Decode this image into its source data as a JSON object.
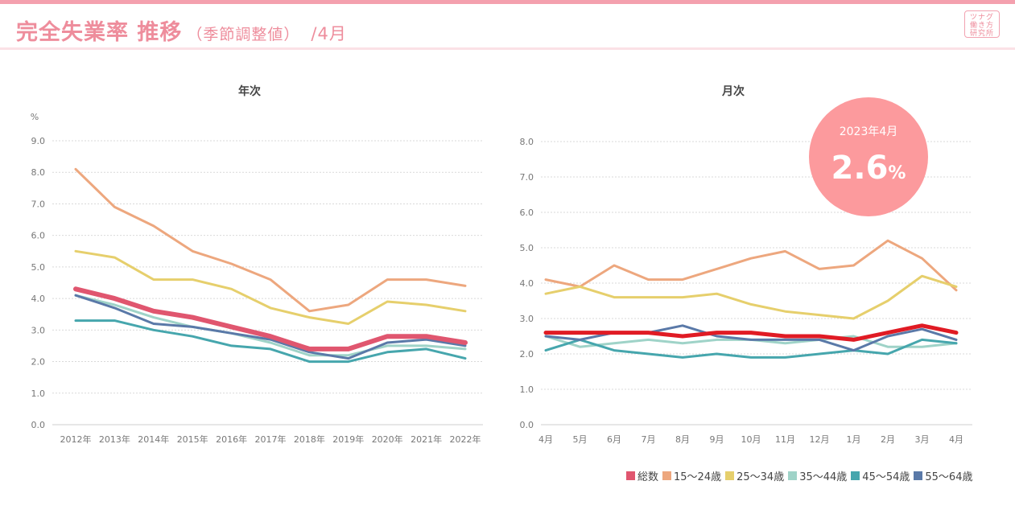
{
  "header": {
    "title": "完全失業率 推移",
    "subtitle": "（季節調整値）",
    "month": "/4月"
  },
  "logo": {
    "lines": [
      "ツナグ",
      "働き方",
      "研究所"
    ]
  },
  "colors": {
    "総数": "#e0566f",
    "15〜24歳": "#eda77e",
    "25〜34歳": "#e6cf6c",
    "35〜44歳": "#9fd3c8",
    "45〜54歳": "#46a6ad",
    "55〜64歳": "#5a79a8",
    "badge": "#fc9a9d",
    "monthly_total": "#e01b24"
  },
  "legend": [
    "総数",
    "15〜24歳",
    "25〜34歳",
    "35〜44歳",
    "45〜54歳",
    "55〜64歳"
  ],
  "badge": {
    "label": "2023年4月",
    "value": "2.6",
    "unit": "%"
  },
  "chart_data": [
    {
      "type": "line",
      "title": "年次",
      "ylabel": "%",
      "ylim": [
        0,
        9
      ],
      "yticks": [
        "0.0",
        "1.0",
        "2.0",
        "3.0",
        "4.0",
        "5.0",
        "6.0",
        "7.0",
        "8.0",
        "9.0"
      ],
      "grid": true,
      "categories": [
        "2012年",
        "2013年",
        "2014年",
        "2015年",
        "2016年",
        "2017年",
        "2018年",
        "2019年",
        "2020年",
        "2021年",
        "2022年"
      ],
      "series": [
        {
          "name": "15〜24歳",
          "values": [
            8.1,
            6.9,
            6.3,
            5.5,
            5.1,
            4.6,
            3.6,
            3.8,
            4.6,
            4.6,
            4.4
          ]
        },
        {
          "name": "25〜34歳",
          "values": [
            5.5,
            5.3,
            4.6,
            4.6,
            4.3,
            3.7,
            3.4,
            3.2,
            3.9,
            3.8,
            3.6
          ]
        },
        {
          "name": "35〜44歳",
          "values": [
            4.1,
            3.8,
            3.4,
            3.1,
            2.9,
            2.6,
            2.2,
            2.2,
            2.5,
            2.5,
            2.4
          ]
        },
        {
          "name": "45〜54歳",
          "values": [
            3.3,
            3.3,
            3.0,
            2.8,
            2.5,
            2.4,
            2.0,
            2.0,
            2.3,
            2.4,
            2.1
          ]
        },
        {
          "name": "55〜64歳",
          "values": [
            4.1,
            3.7,
            3.2,
            3.1,
            2.9,
            2.7,
            2.3,
            2.1,
            2.6,
            2.7,
            2.5
          ]
        },
        {
          "name": "総数",
          "values": [
            4.3,
            4.0,
            3.6,
            3.4,
            3.1,
            2.8,
            2.4,
            2.4,
            2.8,
            2.8,
            2.6
          ]
        }
      ]
    },
    {
      "type": "line",
      "title": "月次",
      "ylim": [
        0,
        8
      ],
      "yticks": [
        "0.0",
        "1.0",
        "2.0",
        "3.0",
        "4.0",
        "5.0",
        "6.0",
        "7.0",
        "8.0"
      ],
      "grid": true,
      "categories": [
        "4月",
        "5月",
        "6月",
        "7月",
        "8月",
        "9月",
        "10月",
        "11月",
        "12月",
        "1月",
        "2月",
        "3月",
        "4月"
      ],
      "series": [
        {
          "name": "15〜24歳",
          "values": [
            4.1,
            3.9,
            4.5,
            4.1,
            4.1,
            4.4,
            4.7,
            4.9,
            4.4,
            4.5,
            5.2,
            4.7,
            3.8
          ]
        },
        {
          "name": "25〜34歳",
          "values": [
            3.7,
            3.9,
            3.6,
            3.6,
            3.6,
            3.7,
            3.4,
            3.2,
            3.1,
            3.0,
            3.5,
            4.2,
            3.9
          ]
        },
        {
          "name": "35〜44歳",
          "values": [
            2.5,
            2.2,
            2.3,
            2.4,
            2.3,
            2.4,
            2.4,
            2.3,
            2.4,
            2.5,
            2.2,
            2.2,
            2.3
          ]
        },
        {
          "name": "45〜54歳",
          "values": [
            2.1,
            2.4,
            2.1,
            2.0,
            1.9,
            2.0,
            1.9,
            1.9,
            2.0,
            2.1,
            2.0,
            2.4,
            2.3
          ]
        },
        {
          "name": "55〜64歳",
          "values": [
            2.5,
            2.4,
            2.6,
            2.6,
            2.8,
            2.5,
            2.4,
            2.4,
            2.4,
            2.1,
            2.5,
            2.7,
            2.4
          ]
        },
        {
          "name": "総数",
          "values": [
            2.6,
            2.6,
            2.6,
            2.6,
            2.5,
            2.6,
            2.6,
            2.5,
            2.5,
            2.4,
            2.6,
            2.8,
            2.6
          ]
        }
      ]
    }
  ]
}
